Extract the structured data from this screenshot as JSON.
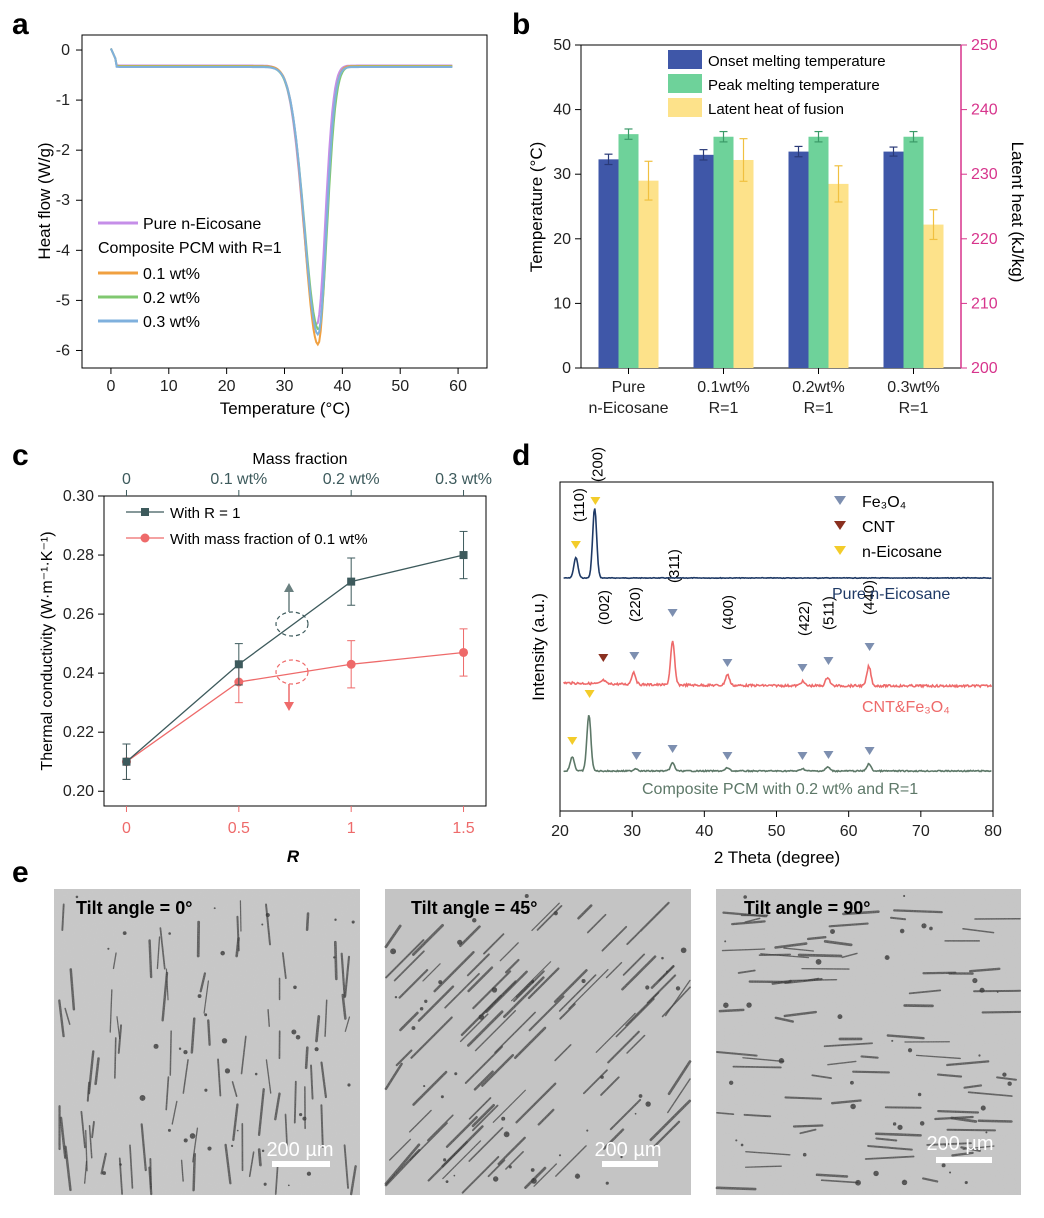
{
  "panel_labels": [
    "a",
    "b",
    "c",
    "d",
    "e"
  ],
  "colors": {
    "pure": "#c58ee8",
    "wt01": "#f0a040",
    "wt02": "#80c870",
    "wt03": "#7fb0dd",
    "onset": "#3f57a8",
    "peak": "#6ed29a",
    "latent": "#fde28a",
    "latent_axis": "#d7348c",
    "with_R1": "#3d5a5c",
    "with_mf": "#ee6a6a",
    "fe3o4_marker": "#7d8fb0",
    "cnt_marker": "#8a3020",
    "eicosane_marker": "#f3cc2a",
    "pure_xrd": "#1f3a66",
    "cnt_xrd": "#ee6a6a",
    "composite_xrd": "#5d7868"
  },
  "chart_data": [
    {
      "id": "a",
      "type": "line",
      "xlabel": "Temperature (°C)",
      "ylabel": "Heat flow (W/g)",
      "xlim": [
        -5,
        65
      ],
      "ylim": [
        -6.35,
        0.3
      ],
      "xticks": [
        0,
        10,
        20,
        30,
        40,
        50,
        60
      ],
      "yticks": [
        0,
        -1,
        -2,
        -3,
        -4,
        -5,
        -6
      ],
      "legend": {
        "placement": "bottom-left",
        "entries": [
          {
            "label": "Pure n-Eicosane",
            "color_key": "pure"
          },
          {
            "label": "Composite PCM with R=1",
            "heading": true
          },
          {
            "label": "0.1 wt%",
            "color_key": "wt01"
          },
          {
            "label": "0.2 wt%",
            "color_key": "wt02"
          },
          {
            "label": "0.3 wt%",
            "color_key": "wt03"
          }
        ]
      },
      "series": [
        {
          "name": "Pure n-Eicosane",
          "color_key": "pure",
          "peak_x": 35.6,
          "peak_y": -5.4,
          "baseline": -0.23,
          "width": 1.3
        },
        {
          "name": "0.1 wt%",
          "color_key": "wt01",
          "peak_x": 35.8,
          "peak_y": -5.8,
          "baseline": -0.24,
          "width": 1.3
        },
        {
          "name": "0.2 wt%",
          "color_key": "wt02",
          "peak_x": 35.9,
          "peak_y": -5.5,
          "baseline": -0.25,
          "width": 1.35
        },
        {
          "name": "0.3 wt%",
          "color_key": "wt03",
          "peak_x": 35.8,
          "peak_y": -5.6,
          "baseline": -0.26,
          "width": 1.3
        }
      ]
    },
    {
      "id": "b",
      "type": "bar",
      "categories": [
        [
          "Pure",
          "n-Eicosane"
        ],
        [
          "0.1wt%",
          "R=1"
        ],
        [
          "0.2wt%",
          "R=1"
        ],
        [
          "0.3wt%",
          "R=1"
        ]
      ],
      "ylabel": "Temperature (°C)",
      "ylim": [
        0,
        50
      ],
      "yticks": [
        0,
        10,
        20,
        30,
        40,
        50
      ],
      "y2label": "Latent heat (kJ/kg)",
      "y2lim": [
        200,
        250
      ],
      "y2ticks": [
        200,
        210,
        220,
        230,
        240,
        250
      ],
      "legend": {
        "placement": "top-center"
      },
      "series": [
        {
          "name": "Onset melting temperature",
          "color_key": "onset",
          "axis": "left",
          "values": [
            32.3,
            33.0,
            33.5,
            33.5
          ],
          "errors": [
            0.8,
            0.8,
            0.8,
            0.7
          ]
        },
        {
          "name": "Peak melting temperature",
          "color_key": "peak",
          "axis": "left",
          "values": [
            36.2,
            35.8,
            35.8,
            35.8
          ],
          "errors": [
            0.8,
            0.8,
            0.8,
            0.8
          ]
        },
        {
          "name": "Latent heat of fusion",
          "color_key": "latent",
          "axis": "right",
          "values": [
            229.0,
            232.2,
            228.5,
            222.2
          ],
          "errors": [
            3.0,
            3.3,
            2.8,
            2.3
          ]
        }
      ]
    },
    {
      "id": "c",
      "type": "line",
      "xlabel": "R",
      "ylabel": "Thermal conductivity (W·m⁻¹·K⁻¹)",
      "x2label": "Mass fraction",
      "x2ticks": [
        "0",
        "0.1 wt%",
        "0.2 wt%",
        "0.3 wt%"
      ],
      "xlim": [
        -0.1,
        1.6
      ],
      "ylim": [
        0.195,
        0.3
      ],
      "xticks": [
        "0",
        "0.5",
        "1",
        "1.5"
      ],
      "yticks": [
        "0.20",
        "0.22",
        "0.24",
        "0.26",
        "0.28",
        "0.30"
      ],
      "legend": {
        "placement": "top-left"
      },
      "series": [
        {
          "name": "With R = 1",
          "color_key": "with_R1",
          "x": [
            0,
            0.5,
            1,
            1.5
          ],
          "y": [
            0.21,
            0.243,
            0.271,
            0.28
          ],
          "errors": [
            0.006,
            0.007,
            0.008,
            0.008
          ]
        },
        {
          "name": "With mass fraction of 0.1 wt%",
          "color_key": "with_mf",
          "x": [
            0,
            0.5,
            1,
            1.5
          ],
          "y": [
            0.21,
            0.237,
            0.243,
            0.247
          ],
          "errors": [
            0.006,
            0.007,
            0.008,
            0.008
          ]
        }
      ]
    },
    {
      "id": "d",
      "type": "line",
      "xlabel": "2 Theta (degree)",
      "ylabel": "Intensity (a.u.)",
      "xlim": [
        20,
        80
      ],
      "xticks": [
        20,
        30,
        40,
        50,
        60,
        70,
        80
      ],
      "legend": {
        "placement": "top-right",
        "entries": [
          {
            "label": "Fe₃O₄",
            "color_key": "fe3o4_marker"
          },
          {
            "label": "CNT",
            "color_key": "cnt_marker"
          },
          {
            "label": "n-Eicosane",
            "color_key": "eicosane_marker"
          }
        ]
      },
      "series": [
        {
          "name": "Pure n-Eicosane",
          "color_key": "pure_xrd",
          "peaks": [
            [
              22.2,
              0.25
            ],
            [
              24.8,
              0.85
            ]
          ]
        },
        {
          "name": "CNT&Fe₃O₄",
          "color_key": "cnt_xrd",
          "peaks": [
            [
              26.0,
              0.05
            ],
            [
              30.2,
              0.17
            ],
            [
              35.6,
              0.6
            ],
            [
              43.2,
              0.15
            ],
            [
              53.6,
              0.06
            ],
            [
              57.1,
              0.12
            ],
            [
              62.8,
              0.27
            ]
          ]
        },
        {
          "name": "Composite PCM with 0.2 wt% and R=1",
          "color_key": "composite_xrd",
          "peaks": [
            [
              21.7,
              0.18
            ],
            [
              24.0,
              0.7
            ],
            [
              30.5,
              0.03
            ],
            [
              35.6,
              0.1
            ],
            [
              43.2,
              0.04
            ],
            [
              53.6,
              0.03
            ],
            [
              57.1,
              0.05
            ],
            [
              62.8,
              0.09
            ]
          ]
        }
      ],
      "peak_labels": [
        "(110)",
        "(200)",
        "(002)",
        "(220)",
        "(311)",
        "(400)",
        "(422)",
        "(511)",
        "(440)"
      ]
    }
  ],
  "micrographs": [
    {
      "title": "Tilt angle = 0°",
      "scale": "200 µm",
      "orientation_deg": 0
    },
    {
      "title": "Tilt angle = 45°",
      "scale": "200 µm",
      "orientation_deg": 45
    },
    {
      "title": "Tilt angle = 90°",
      "scale": "200 µm",
      "orientation_deg": 90
    }
  ]
}
